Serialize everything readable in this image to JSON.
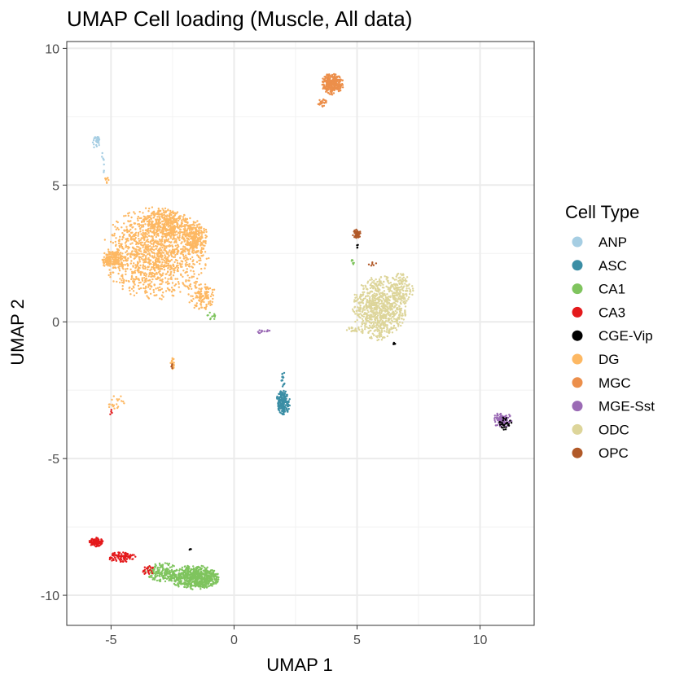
{
  "chart_data": {
    "type": "scatter",
    "title": "UMAP Cell loading (Muscle, All data)",
    "xlabel": "UMAP 1",
    "ylabel": "UMAP 2",
    "xlim": [
      -6.8,
      12.2
    ],
    "ylim": [
      -11.1,
      10.25
    ],
    "xticks": [
      -5,
      0,
      5,
      10
    ],
    "yticks": [
      -10,
      -5,
      0,
      5,
      10
    ],
    "xtick_labels": [
      "-5",
      "0",
      "5",
      "10"
    ],
    "ytick_labels": [
      "-10",
      "-5",
      "0",
      "5",
      "10"
    ],
    "grid": true,
    "legend": {
      "title": "Cell Type",
      "placement": "right"
    },
    "series": [
      {
        "name": "ANP",
        "color": "#a6cee3",
        "clusters": [
          {
            "cx": -5.6,
            "cy": 6.6,
            "rx": 0.15,
            "ry": 0.3,
            "n": 30
          },
          {
            "cx": -5.3,
            "cy": 5.8,
            "rx": 0.12,
            "ry": 0.6,
            "n": 8
          }
        ]
      },
      {
        "name": "ASC",
        "color": "#3b8ea5",
        "clusters": [
          {
            "cx": 2.0,
            "cy": -2.95,
            "rx": 0.28,
            "ry": 0.45,
            "n": 180
          },
          {
            "cx": 2.0,
            "cy": -2.1,
            "rx": 0.08,
            "ry": 0.3,
            "n": 15
          }
        ]
      },
      {
        "name": "CA1",
        "color": "#7fc45e",
        "clusters": [
          {
            "cx": -1.6,
            "cy": -9.35,
            "rx": 1.0,
            "ry": 0.45,
            "n": 650
          },
          {
            "cx": -2.9,
            "cy": -9.15,
            "rx": 0.7,
            "ry": 0.35,
            "n": 160
          },
          {
            "cx": -0.9,
            "cy": 0.2,
            "rx": 0.25,
            "ry": 0.25,
            "n": 12
          },
          {
            "cx": 4.8,
            "cy": 2.2,
            "rx": 0.15,
            "ry": 0.2,
            "n": 6
          }
        ]
      },
      {
        "name": "CA3",
        "color": "#e41a1c",
        "clusters": [
          {
            "cx": -5.6,
            "cy": -8.05,
            "rx": 0.3,
            "ry": 0.18,
            "n": 110
          },
          {
            "cx": -4.6,
            "cy": -8.6,
            "rx": 0.6,
            "ry": 0.2,
            "n": 90
          },
          {
            "cx": -3.5,
            "cy": -9.1,
            "rx": 0.3,
            "ry": 0.2,
            "n": 25
          },
          {
            "cx": -5.0,
            "cy": -3.3,
            "rx": 0.1,
            "ry": 0.1,
            "n": 4
          }
        ]
      },
      {
        "name": "CGE-Vip",
        "color": "#000000",
        "clusters": [
          {
            "cx": 11.0,
            "cy": -3.7,
            "rx": 0.3,
            "ry": 0.25,
            "n": 30
          },
          {
            "cx": 6.5,
            "cy": -0.8,
            "rx": 0.06,
            "ry": 0.06,
            "n": 6
          },
          {
            "cx": 5.0,
            "cy": 2.8,
            "rx": 0.05,
            "ry": 0.1,
            "n": 4
          },
          {
            "cx": -1.8,
            "cy": -8.3,
            "rx": 0.08,
            "ry": 0.05,
            "n": 3
          }
        ]
      },
      {
        "name": "DG",
        "color": "#fdb863",
        "clusters": [
          {
            "cx": -3.2,
            "cy": 2.5,
            "rx": 2.2,
            "ry": 1.7,
            "n": 1300
          },
          {
            "cx": -2.8,
            "cy": 3.6,
            "rx": 0.9,
            "ry": 0.5,
            "n": 300
          },
          {
            "cx": -1.6,
            "cy": 3.1,
            "rx": 0.5,
            "ry": 0.7,
            "n": 220
          },
          {
            "cx": -4.9,
            "cy": 2.3,
            "rx": 0.45,
            "ry": 0.35,
            "n": 150
          },
          {
            "cx": -1.3,
            "cy": 0.9,
            "rx": 0.6,
            "ry": 0.5,
            "n": 120
          },
          {
            "cx": -2.5,
            "cy": -1.5,
            "rx": 0.08,
            "ry": 0.25,
            "n": 20
          },
          {
            "cx": -4.8,
            "cy": -2.95,
            "rx": 0.4,
            "ry": 0.35,
            "n": 20
          },
          {
            "cx": -5.2,
            "cy": 5.2,
            "rx": 0.1,
            "ry": 0.25,
            "n": 8
          }
        ]
      },
      {
        "name": "MGC",
        "color": "#ec8f4b",
        "clusters": [
          {
            "cx": 4.0,
            "cy": 8.7,
            "rx": 0.45,
            "ry": 0.4,
            "n": 300
          },
          {
            "cx": 3.6,
            "cy": 8.0,
            "rx": 0.2,
            "ry": 0.15,
            "n": 25
          }
        ]
      },
      {
        "name": "MGE-Sst",
        "color": "#9b6bb5",
        "clusters": [
          {
            "cx": 10.9,
            "cy": -3.6,
            "rx": 0.4,
            "ry": 0.3,
            "n": 90
          },
          {
            "cx": 1.2,
            "cy": -0.35,
            "rx": 0.4,
            "ry": 0.07,
            "n": 12
          }
        ]
      },
      {
        "name": "ODC",
        "color": "#ddd59a",
        "clusters": [
          {
            "cx": 5.9,
            "cy": 0.5,
            "rx": 1.1,
            "ry": 1.2,
            "n": 800
          },
          {
            "cx": 6.8,
            "cy": 1.2,
            "rx": 0.5,
            "ry": 0.6,
            "n": 120
          },
          {
            "cx": 4.8,
            "cy": -0.3,
            "rx": 0.25,
            "ry": 0.1,
            "n": 20
          }
        ]
      },
      {
        "name": "OPC",
        "color": "#b15928",
        "clusters": [
          {
            "cx": 5.0,
            "cy": 3.2,
            "rx": 0.18,
            "ry": 0.18,
            "n": 50
          },
          {
            "cx": 5.6,
            "cy": 2.1,
            "rx": 0.3,
            "ry": 0.1,
            "n": 6
          },
          {
            "cx": -2.5,
            "cy": -1.6,
            "rx": 0.05,
            "ry": 0.15,
            "n": 5
          }
        ]
      }
    ]
  }
}
